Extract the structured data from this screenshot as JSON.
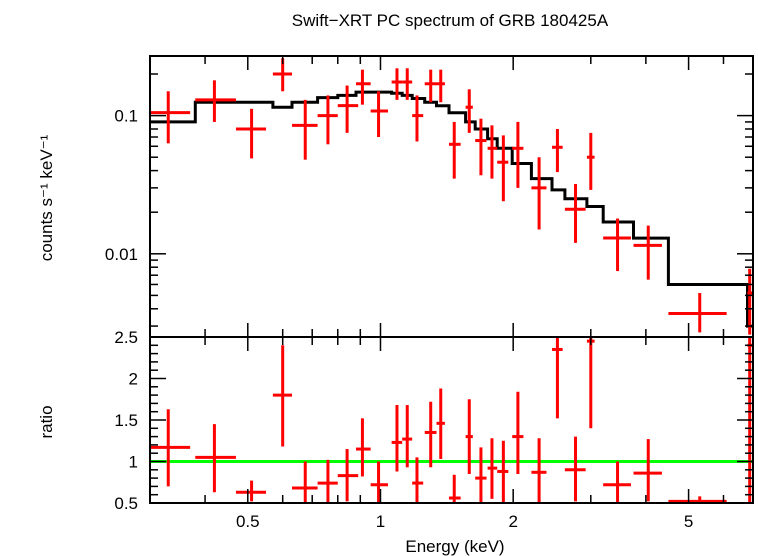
{
  "chart_data": [
    {
      "type": "scatter",
      "title": "Swift−XRT PC spectrum of GRB 180425A",
      "xlabel": "",
      "ylabel": "counts s⁻¹ keV⁻¹",
      "xscale": "log",
      "yscale": "log",
      "xlim": [
        0.3,
        7.0
      ],
      "ylim": [
        0.0025,
        0.27
      ],
      "ytick_labels": [
        "0.01",
        "0.1"
      ],
      "yticks": [
        0.01,
        0.1
      ],
      "colors": {
        "data": "#ff0000",
        "model": "#000000"
      },
      "series": [
        {
          "points": [
            {
              "x": 0.33,
              "xlo": 0.3,
              "xhi": 0.37,
              "y": 0.105,
              "ylo": 0.063,
              "yhi": 0.15
            },
            {
              "x": 0.42,
              "xlo": 0.38,
              "xhi": 0.47,
              "y": 0.13,
              "ylo": 0.09,
              "yhi": 0.18
            },
            {
              "x": 0.51,
              "xlo": 0.47,
              "xhi": 0.55,
              "y": 0.08,
              "ylo": 0.049,
              "yhi": 0.112
            },
            {
              "x": 0.6,
              "xlo": 0.57,
              "xhi": 0.63,
              "y": 0.2,
              "ylo": 0.15,
              "yhi": 0.26
            },
            {
              "x": 0.675,
              "xlo": 0.63,
              "xhi": 0.72,
              "y": 0.085,
              "ylo": 0.048,
              "yhi": 0.13
            },
            {
              "x": 0.76,
              "xlo": 0.72,
              "xhi": 0.8,
              "y": 0.1,
              "ylo": 0.062,
              "yhi": 0.14
            },
            {
              "x": 0.84,
              "xlo": 0.8,
              "xhi": 0.89,
              "y": 0.118,
              "ylo": 0.075,
              "yhi": 0.165
            },
            {
              "x": 0.91,
              "xlo": 0.88,
              "xhi": 0.95,
              "y": 0.17,
              "ylo": 0.12,
              "yhi": 0.215
            },
            {
              "x": 0.99,
              "xlo": 0.95,
              "xhi": 1.04,
              "y": 0.108,
              "ylo": 0.07,
              "yhi": 0.15
            },
            {
              "x": 1.09,
              "xlo": 1.06,
              "xhi": 1.12,
              "y": 0.175,
              "ylo": 0.13,
              "yhi": 0.22
            },
            {
              "x": 1.15,
              "xlo": 1.12,
              "xhi": 1.18,
              "y": 0.175,
              "ylo": 0.13,
              "yhi": 0.22
            },
            {
              "x": 1.21,
              "xlo": 1.18,
              "xhi": 1.25,
              "y": 0.1,
              "ylo": 0.065,
              "yhi": 0.14
            },
            {
              "x": 1.3,
              "xlo": 1.26,
              "xhi": 1.34,
              "y": 0.17,
              "ylo": 0.125,
              "yhi": 0.215
            },
            {
              "x": 1.37,
              "xlo": 1.34,
              "xhi": 1.4,
              "y": 0.17,
              "ylo": 0.125,
              "yhi": 0.215
            },
            {
              "x": 1.47,
              "xlo": 1.43,
              "xhi": 1.52,
              "y": 0.062,
              "ylo": 0.035,
              "yhi": 0.09
            },
            {
              "x": 1.59,
              "xlo": 1.56,
              "xhi": 1.62,
              "y": 0.115,
              "ylo": 0.075,
              "yhi": 0.155
            },
            {
              "x": 1.69,
              "xlo": 1.64,
              "xhi": 1.74,
              "y": 0.066,
              "ylo": 0.037,
              "yhi": 0.095
            },
            {
              "x": 1.79,
              "xlo": 1.75,
              "xhi": 1.84,
              "y": 0.058,
              "ylo": 0.035,
              "yhi": 0.085
            },
            {
              "x": 1.9,
              "xlo": 1.84,
              "xhi": 1.95,
              "y": 0.046,
              "ylo": 0.024,
              "yhi": 0.072
            },
            {
              "x": 2.05,
              "xlo": 1.99,
              "xhi": 2.11,
              "y": 0.058,
              "ylo": 0.03,
              "yhi": 0.09
            },
            {
              "x": 2.29,
              "xlo": 2.2,
              "xhi": 2.38,
              "y": 0.03,
              "ylo": 0.015,
              "yhi": 0.05
            },
            {
              "x": 2.52,
              "xlo": 2.45,
              "xhi": 2.59,
              "y": 0.059,
              "ylo": 0.039,
              "yhi": 0.08
            },
            {
              "x": 2.77,
              "xlo": 2.62,
              "xhi": 2.92,
              "y": 0.021,
              "ylo": 0.012,
              "yhi": 0.032
            },
            {
              "x": 3.0,
              "xlo": 2.94,
              "xhi": 3.06,
              "y": 0.05,
              "ylo": 0.029,
              "yhi": 0.075
            },
            {
              "x": 3.45,
              "xlo": 3.2,
              "xhi": 3.7,
              "y": 0.013,
              "ylo": 0.0075,
              "yhi": 0.018
            },
            {
              "x": 4.05,
              "xlo": 3.75,
              "xhi": 4.35,
              "y": 0.0115,
              "ylo": 0.0065,
              "yhi": 0.016
            },
            {
              "x": 5.3,
              "xlo": 4.5,
              "xhi": 6.1,
              "y": 0.0037,
              "ylo": 0.0027,
              "yhi": 0.0052
            },
            {
              "x": 6.88,
              "xlo": 6.8,
              "xhi": 7.0,
              "y": 0.0052,
              "ylo": 0.0026,
              "yhi": 0.0078
            }
          ]
        },
        {
          "type": "line",
          "step": [
            {
              "x0": 0.3,
              "x1": 0.38,
              "y": 0.09
            },
            {
              "x0": 0.38,
              "x1": 0.47,
              "y": 0.125
            },
            {
              "x0": 0.47,
              "x1": 0.57,
              "y": 0.125
            },
            {
              "x0": 0.57,
              "x1": 0.63,
              "y": 0.115
            },
            {
              "x0": 0.63,
              "x1": 0.72,
              "y": 0.125
            },
            {
              "x0": 0.72,
              "x1": 0.8,
              "y": 0.135
            },
            {
              "x0": 0.8,
              "x1": 0.88,
              "y": 0.14
            },
            {
              "x0": 0.88,
              "x1": 0.95,
              "y": 0.148
            },
            {
              "x0": 0.95,
              "x1": 1.06,
              "y": 0.148
            },
            {
              "x0": 1.06,
              "x1": 1.12,
              "y": 0.145
            },
            {
              "x0": 1.12,
              "x1": 1.18,
              "y": 0.14
            },
            {
              "x0": 1.18,
              "x1": 1.26,
              "y": 0.133
            },
            {
              "x0": 1.26,
              "x1": 1.34,
              "y": 0.125
            },
            {
              "x0": 1.34,
              "x1": 1.43,
              "y": 0.118
            },
            {
              "x0": 1.43,
              "x1": 1.56,
              "y": 0.105
            },
            {
              "x0": 1.56,
              "x1": 1.64,
              "y": 0.09
            },
            {
              "x0": 1.64,
              "x1": 1.75,
              "y": 0.08
            },
            {
              "x0": 1.75,
              "x1": 1.84,
              "y": 0.068
            },
            {
              "x0": 1.84,
              "x1": 1.99,
              "y": 0.058
            },
            {
              "x0": 1.99,
              "x1": 2.2,
              "y": 0.045
            },
            {
              "x0": 2.2,
              "x1": 2.45,
              "y": 0.035
            },
            {
              "x0": 2.45,
              "x1": 2.62,
              "y": 0.029
            },
            {
              "x0": 2.62,
              "x1": 2.94,
              "y": 0.025
            },
            {
              "x0": 2.94,
              "x1": 3.2,
              "y": 0.022
            },
            {
              "x0": 3.2,
              "x1": 3.75,
              "y": 0.017
            },
            {
              "x0": 3.75,
              "x1": 4.5,
              "y": 0.013
            },
            {
              "x0": 4.5,
              "x1": 6.8,
              "y": 0.006
            },
            {
              "x0": 6.8,
              "x1": 7.0,
              "y": 0.003
            }
          ]
        }
      ]
    },
    {
      "type": "scatter",
      "title": "",
      "xlabel": "Energy (keV)",
      "ylabel": "ratio",
      "xscale": "log",
      "yscale": "linear",
      "xlim": [
        0.3,
        7.0
      ],
      "ylim": [
        0.5,
        2.5
      ],
      "yticks": [
        0.5,
        1,
        1.5,
        2,
        2.5
      ],
      "ytick_labels": [
        "0.5",
        "1",
        "1.5",
        "2",
        "2.5"
      ],
      "xticks": [
        0.5,
        1,
        2,
        5
      ],
      "xtick_labels": [
        "0.5",
        "1",
        "2",
        "5"
      ],
      "reference_line": {
        "y": 1,
        "color": "#00ff00"
      },
      "colors": {
        "data": "#ff0000"
      },
      "series": [
        {
          "points": [
            {
              "x": 0.33,
              "xlo": 0.3,
              "xhi": 0.37,
              "y": 1.17,
              "ylo": 0.7,
              "yhi": 1.63
            },
            {
              "x": 0.42,
              "xlo": 0.38,
              "xhi": 0.47,
              "y": 1.05,
              "ylo": 0.63,
              "yhi": 1.45
            },
            {
              "x": 0.51,
              "xlo": 0.47,
              "xhi": 0.55,
              "y": 0.63,
              "ylo": 0.52,
              "yhi": 0.77
            },
            {
              "x": 0.6,
              "xlo": 0.57,
              "xhi": 0.63,
              "y": 1.8,
              "ylo": 1.18,
              "yhi": 2.4
            },
            {
              "x": 0.675,
              "xlo": 0.63,
              "xhi": 0.72,
              "y": 0.68,
              "ylo": 0.5,
              "yhi": 1.0
            },
            {
              "x": 0.76,
              "xlo": 0.72,
              "xhi": 0.8,
              "y": 0.74,
              "ylo": 0.5,
              "yhi": 1.02
            },
            {
              "x": 0.84,
              "xlo": 0.8,
              "xhi": 0.89,
              "y": 0.83,
              "ylo": 0.52,
              "yhi": 1.15
            },
            {
              "x": 0.91,
              "xlo": 0.88,
              "xhi": 0.95,
              "y": 1.15,
              "ylo": 0.82,
              "yhi": 1.52
            },
            {
              "x": 0.99,
              "xlo": 0.95,
              "xhi": 1.04,
              "y": 0.72,
              "ylo": 0.5,
              "yhi": 1.0
            },
            {
              "x": 1.09,
              "xlo": 1.06,
              "xhi": 1.12,
              "y": 1.23,
              "ylo": 0.88,
              "yhi": 1.68
            },
            {
              "x": 1.15,
              "xlo": 1.12,
              "xhi": 1.18,
              "y": 1.27,
              "ylo": 0.93,
              "yhi": 1.68
            },
            {
              "x": 1.21,
              "xlo": 1.18,
              "xhi": 1.25,
              "y": 0.74,
              "ylo": 0.5,
              "yhi": 1.05
            },
            {
              "x": 1.3,
              "xlo": 1.26,
              "xhi": 1.34,
              "y": 1.35,
              "ylo": 0.93,
              "yhi": 1.72
            },
            {
              "x": 1.37,
              "xlo": 1.34,
              "xhi": 1.4,
              "y": 1.46,
              "ylo": 1.03,
              "yhi": 1.88
            },
            {
              "x": 1.47,
              "xlo": 1.43,
              "xhi": 1.52,
              "y": 0.56,
              "ylo": 0.5,
              "yhi": 0.84
            },
            {
              "x": 1.59,
              "xlo": 1.56,
              "xhi": 1.62,
              "y": 1.3,
              "ylo": 0.85,
              "yhi": 1.75
            },
            {
              "x": 1.69,
              "xlo": 1.64,
              "xhi": 1.74,
              "y": 0.8,
              "ylo": 0.5,
              "yhi": 1.17
            },
            {
              "x": 1.79,
              "xlo": 1.75,
              "xhi": 1.84,
              "y": 0.92,
              "ylo": 0.55,
              "yhi": 1.28
            },
            {
              "x": 1.9,
              "xlo": 1.84,
              "xhi": 1.95,
              "y": 0.88,
              "ylo": 0.5,
              "yhi": 1.25
            },
            {
              "x": 2.05,
              "xlo": 1.99,
              "xhi": 2.11,
              "y": 1.3,
              "ylo": 0.85,
              "yhi": 1.84
            },
            {
              "x": 2.29,
              "xlo": 2.2,
              "xhi": 2.38,
              "y": 0.87,
              "ylo": 0.5,
              "yhi": 1.28
            },
            {
              "x": 2.52,
              "xlo": 2.45,
              "xhi": 2.59,
              "y": 2.35,
              "ylo": 1.52,
              "yhi": 2.5
            },
            {
              "x": 2.77,
              "xlo": 2.62,
              "xhi": 2.92,
              "y": 0.9,
              "ylo": 0.52,
              "yhi": 1.3
            },
            {
              "x": 3.0,
              "xlo": 2.94,
              "xhi": 3.06,
              "y": 2.45,
              "ylo": 1.4,
              "yhi": 2.5
            },
            {
              "x": 3.45,
              "xlo": 3.2,
              "xhi": 3.7,
              "y": 0.72,
              "ylo": 0.5,
              "yhi": 1.0
            },
            {
              "x": 4.05,
              "xlo": 3.75,
              "xhi": 4.35,
              "y": 0.86,
              "ylo": 0.52,
              "yhi": 1.27
            },
            {
              "x": 5.3,
              "xlo": 4.5,
              "xhi": 6.1,
              "y": 0.52,
              "ylo": 0.5,
              "yhi": 0.58
            },
            {
              "x": 6.88,
              "xlo": 6.8,
              "xhi": 7.0,
              "y": 2.4,
              "ylo": 0.5,
              "yhi": 2.5
            }
          ]
        }
      ]
    }
  ]
}
